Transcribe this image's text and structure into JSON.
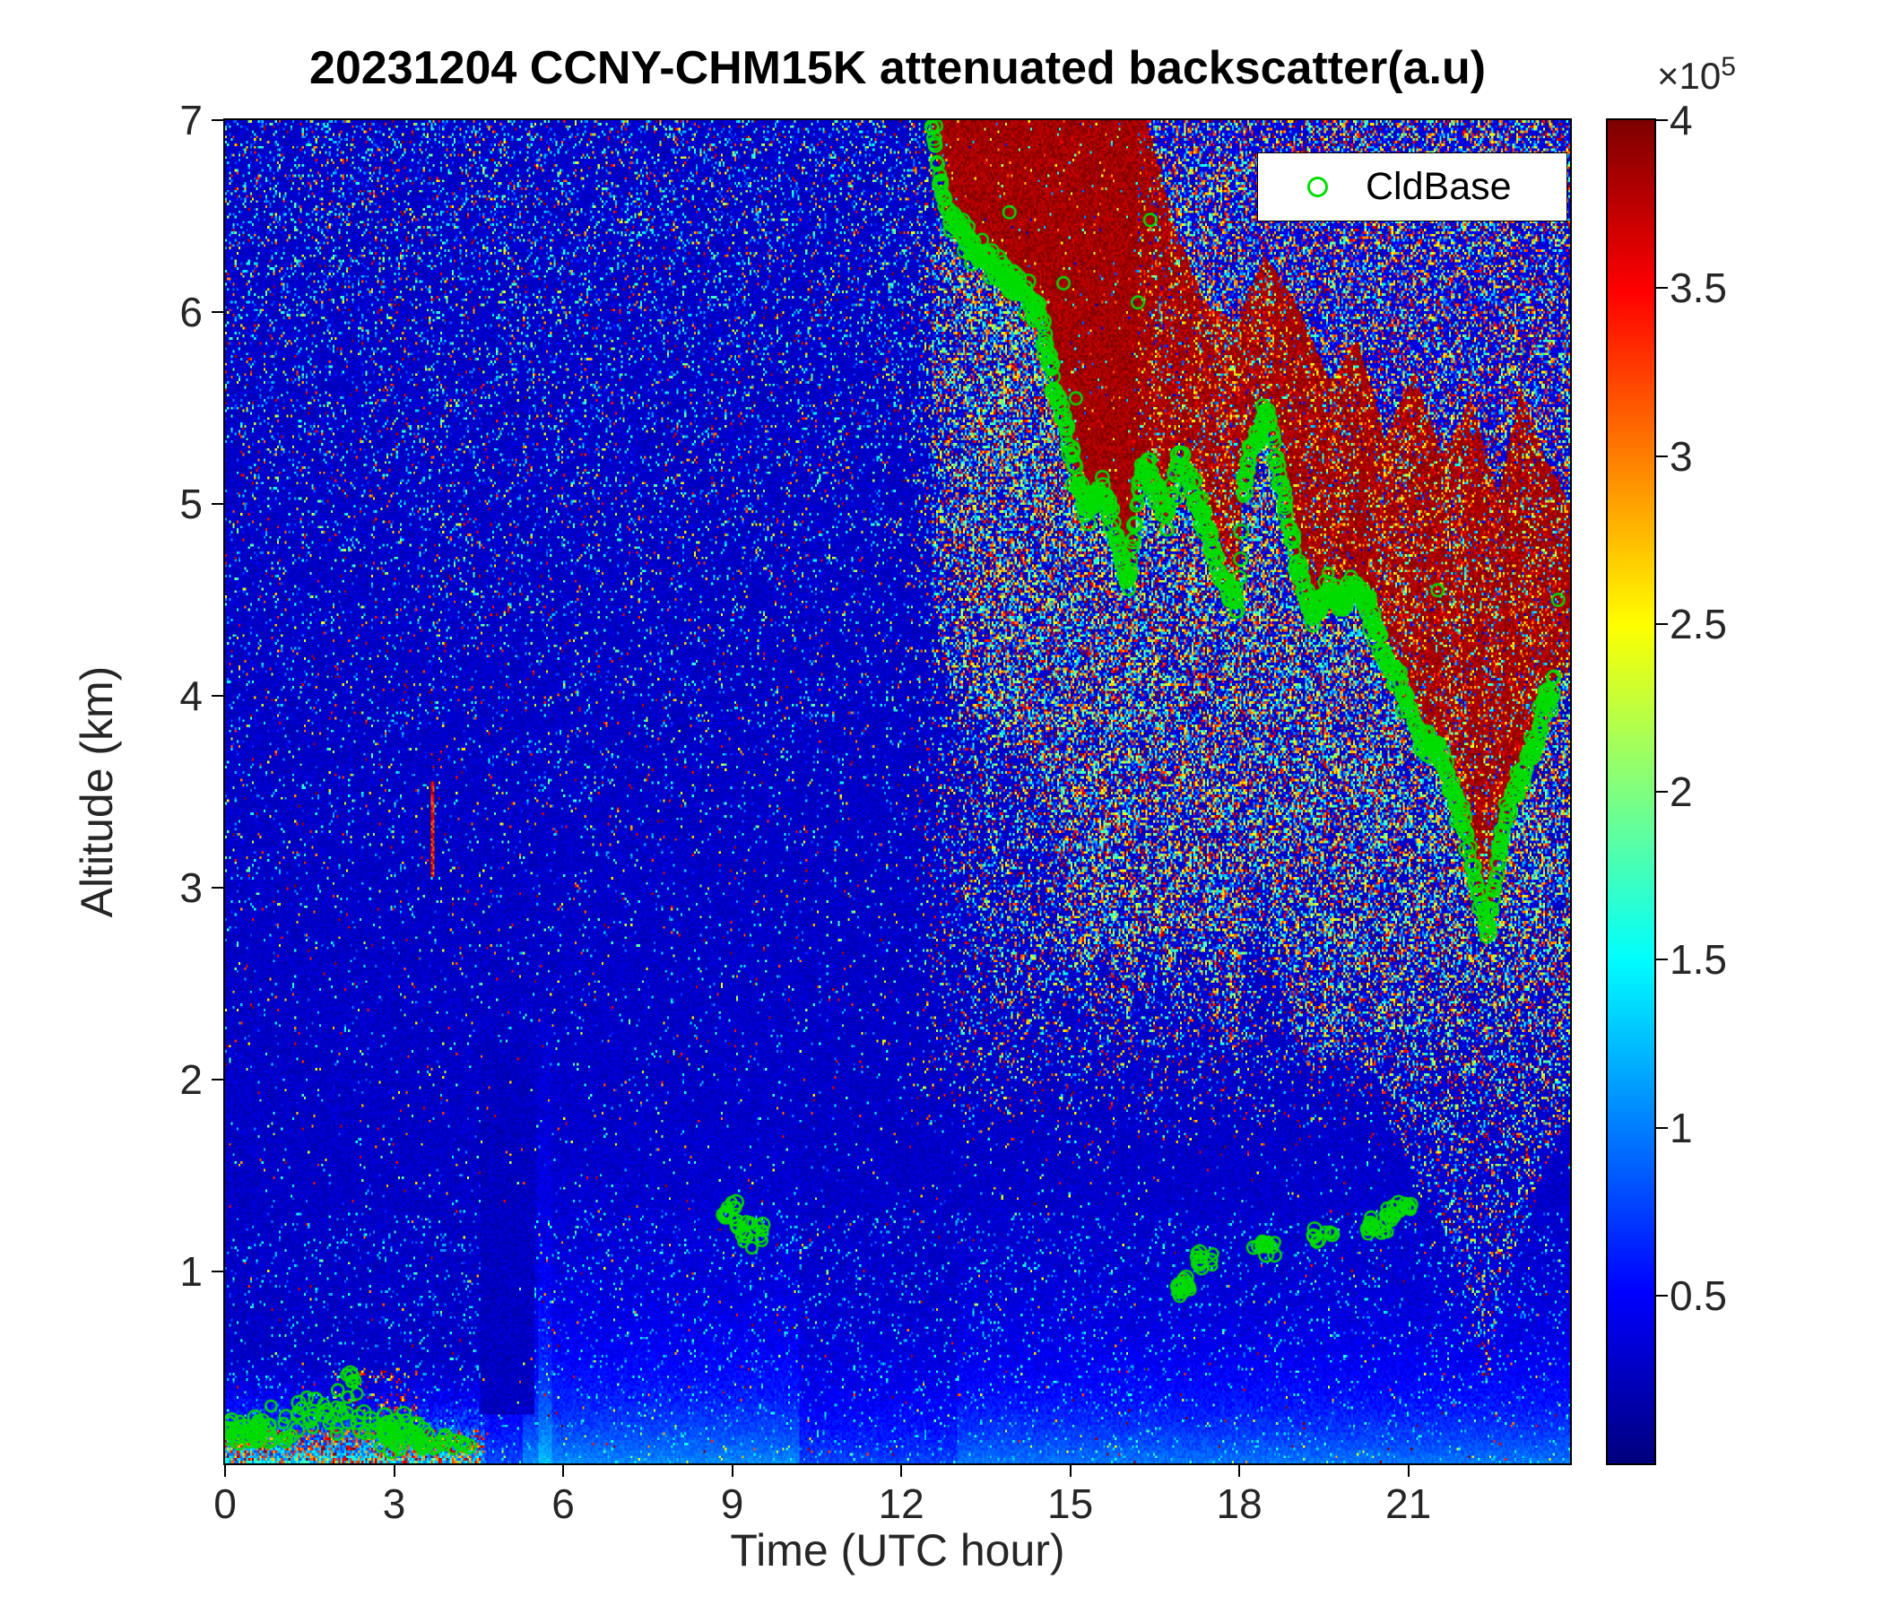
{
  "chart_data": {
    "type": "heatmap",
    "title": "20231204 CCNY-CHM15K attenuated backscatter(a.u)",
    "xlabel": "Time (UTC hour)",
    "ylabel": "Altitude (km)",
    "xlim": [
      0,
      23.87
    ],
    "ylim": [
      0,
      7
    ],
    "xticks": [
      0,
      3,
      6,
      9,
      12,
      15,
      18,
      21
    ],
    "xtick_labels": [
      "0",
      "3",
      "6",
      "9",
      "12",
      "15",
      "18",
      "21"
    ],
    "yticks": [
      1,
      2,
      3,
      4,
      5,
      6,
      7
    ],
    "ytick_labels": [
      "1",
      "2",
      "3",
      "4",
      "5",
      "6",
      "7"
    ],
    "grid": false,
    "colormap": "jet",
    "colorbar": {
      "vmin": 0,
      "vmax": 400000,
      "tick_max": 4,
      "ticks": [
        0.5,
        1,
        1.5,
        2,
        2.5,
        3,
        3.5,
        4
      ],
      "tick_labels": [
        "0.5",
        "1",
        "1.5",
        "2",
        "2.5",
        "3",
        "3.5",
        "4"
      ],
      "scale_base": "×10",
      "scale_exp": "5",
      "position": "right"
    },
    "legend": {
      "label": "CldBase",
      "marker": "circle-outline",
      "marker_color": "#00dd00",
      "position": "top-right"
    },
    "cloud_base_line": [
      [
        12.55,
        7.0
      ],
      [
        12.6,
        6.88
      ],
      [
        12.65,
        6.78
      ],
      [
        12.72,
        6.65
      ],
      [
        12.8,
        6.55
      ],
      [
        12.9,
        6.48
      ],
      [
        13.0,
        6.44
      ],
      [
        13.15,
        6.38
      ],
      [
        13.3,
        6.33
      ],
      [
        13.5,
        6.28
      ],
      [
        13.7,
        6.22
      ],
      [
        13.9,
        6.16
      ],
      [
        14.1,
        6.12
      ],
      [
        14.3,
        6.07
      ],
      [
        14.45,
        5.98
      ],
      [
        14.6,
        5.8
      ],
      [
        14.72,
        5.62
      ],
      [
        14.85,
        5.48
      ],
      [
        14.95,
        5.35
      ],
      [
        15.05,
        5.22
      ],
      [
        15.15,
        5.08
      ],
      [
        15.25,
        5.0
      ],
      [
        15.35,
        4.97
      ],
      [
        15.45,
        5.05
      ],
      [
        15.55,
        5.08
      ],
      [
        15.65,
        5.02
      ],
      [
        15.75,
        4.92
      ],
      [
        15.85,
        4.8
      ],
      [
        15.95,
        4.65
      ],
      [
        16.05,
        4.6
      ],
      [
        16.12,
        4.82
      ],
      [
        16.2,
        5.05
      ],
      [
        16.3,
        5.2
      ],
      [
        16.4,
        5.18
      ],
      [
        16.5,
        5.1
      ],
      [
        16.6,
        5.0
      ],
      [
        16.72,
        4.9
      ],
      [
        16.82,
        5.05
      ],
      [
        16.92,
        5.25
      ],
      [
        17.02,
        5.22
      ],
      [
        17.12,
        5.12
      ],
      [
        17.25,
        5.02
      ],
      [
        17.4,
        4.9
      ],
      [
        17.55,
        4.76
      ],
      [
        17.7,
        4.63
      ],
      [
        17.85,
        4.53
      ],
      [
        17.97,
        4.47
      ],
      [
        18.05,
        5.02
      ],
      [
        18.15,
        5.18
      ],
      [
        18.28,
        5.32
      ],
      [
        18.42,
        5.46
      ],
      [
        18.52,
        5.44
      ],
      [
        18.62,
        5.3
      ],
      [
        18.75,
        5.08
      ],
      [
        18.87,
        4.9
      ],
      [
        18.98,
        4.75
      ],
      [
        19.1,
        4.6
      ],
      [
        19.2,
        4.48
      ],
      [
        19.3,
        4.4
      ],
      [
        19.42,
        4.46
      ],
      [
        19.55,
        4.56
      ],
      [
        19.7,
        4.54
      ],
      [
        19.85,
        4.48
      ],
      [
        19.95,
        4.53
      ],
      [
        20.08,
        4.58
      ],
      [
        20.2,
        4.5
      ],
      [
        20.35,
        4.42
      ],
      [
        20.5,
        4.3
      ],
      [
        20.65,
        4.15
      ],
      [
        20.8,
        4.1
      ],
      [
        20.95,
        4.0
      ],
      [
        21.1,
        3.88
      ],
      [
        21.25,
        3.76
      ],
      [
        21.4,
        3.72
      ],
      [
        21.52,
        3.76
      ],
      [
        21.65,
        3.6
      ],
      [
        21.8,
        3.48
      ],
      [
        21.95,
        3.36
      ],
      [
        22.1,
        3.18
      ],
      [
        22.2,
        3.02
      ],
      [
        22.3,
        2.88
      ],
      [
        22.4,
        2.78
      ],
      [
        22.5,
        2.95
      ],
      [
        22.62,
        3.2
      ],
      [
        22.75,
        3.38
      ],
      [
        22.9,
        3.5
      ],
      [
        23.05,
        3.6
      ],
      [
        23.2,
        3.72
      ],
      [
        23.35,
        3.88
      ],
      [
        23.5,
        4.0
      ],
      [
        23.58,
        4.06
      ],
      [
        23.87,
        4.2
      ]
    ],
    "cloud_top_line": [
      [
        12.45,
        7.0
      ],
      [
        16.35,
        7.0
      ],
      [
        16.9,
        6.4
      ],
      [
        17.4,
        6.05
      ],
      [
        17.95,
        5.95
      ],
      [
        18.45,
        6.3
      ],
      [
        19.0,
        6.05
      ],
      [
        19.6,
        5.65
      ],
      [
        20.1,
        5.85
      ],
      [
        20.6,
        5.35
      ],
      [
        21.1,
        5.7
      ],
      [
        21.6,
        5.25
      ],
      [
        22.1,
        5.55
      ],
      [
        22.6,
        5.05
      ],
      [
        23.0,
        5.6
      ],
      [
        23.4,
        5.25
      ],
      [
        23.87,
        5.0
      ]
    ],
    "cloud_base_clusters": [
      {
        "h0": 0.0,
        "h1": 0.6,
        "z": 0.15,
        "spread": 0.09,
        "n": 30
      },
      {
        "h0": 0.5,
        "h1": 1.3,
        "z": 0.2,
        "spread": 0.1,
        "n": 22
      },
      {
        "h0": 1.3,
        "h1": 2.5,
        "z": 0.26,
        "spread": 0.13,
        "n": 30
      },
      {
        "h0": 2.0,
        "h1": 2.35,
        "z": 0.42,
        "spread": 0.06,
        "n": 7
      },
      {
        "h0": 2.55,
        "h1": 3.65,
        "z": 0.16,
        "spread": 0.11,
        "n": 55
      },
      {
        "h0": 3.65,
        "h1": 4.35,
        "z": 0.1,
        "spread": 0.05,
        "n": 12
      },
      {
        "h0": 8.82,
        "h1": 9.1,
        "z": 1.33,
        "spread": 0.09,
        "n": 12
      },
      {
        "h0": 9.05,
        "h1": 9.55,
        "z": 1.22,
        "spread": 0.11,
        "n": 18
      },
      {
        "h0": 16.88,
        "h1": 17.15,
        "z": 0.93,
        "spread": 0.08,
        "n": 16
      },
      {
        "h0": 17.2,
        "h1": 17.55,
        "z": 1.07,
        "spread": 0.07,
        "n": 12
      },
      {
        "h0": 18.25,
        "h1": 18.65,
        "z": 1.12,
        "spread": 0.07,
        "n": 14
      },
      {
        "h0": 19.3,
        "h1": 19.65,
        "z": 1.2,
        "spread": 0.06,
        "n": 10
      },
      {
        "h0": 20.25,
        "h1": 20.7,
        "z": 1.24,
        "spread": 0.07,
        "n": 16
      },
      {
        "h0": 20.6,
        "h1": 21.05,
        "z": 1.32,
        "spread": 0.06,
        "n": 18
      }
    ],
    "cloud_base_outliers": [
      [
        13.92,
        6.52
      ],
      [
        14.88,
        6.15
      ],
      [
        16.2,
        6.05
      ],
      [
        16.42,
        6.48
      ],
      [
        12.62,
        6.97
      ],
      [
        15.1,
        5.55
      ],
      [
        21.52,
        4.55
      ],
      [
        23.66,
        4.5
      ]
    ],
    "heatmap_model": {
      "seed": 20231204,
      "nx": 700,
      "ny": 520,
      "base_value": 0.045,
      "base_noise": 0.05,
      "clear_speckle_base": 0.015,
      "clear_speckle_alt_gain": 0.2,
      "right_speckle_start_hour": 12.1,
      "right_speckle_gain": 0.3,
      "virga_depth_km": 2.4,
      "virga_speckle": 0.22,
      "above_cloud_speckle": 0.5,
      "cloud_value": 0.93,
      "cloud_solid_left": 0.97,
      "cloud_streak_min": 0.45,
      "streak_solid_hour": 16.2,
      "bl_left_end_hour": 4.6,
      "dark_columns": {
        "h0": 4.55,
        "h1": 5.5,
        "zmax": 2.2
      },
      "red_streak": {
        "hour": 3.68,
        "half_width": 0.035,
        "z0": 3.05,
        "z1": 3.55
      },
      "line_step": 0.021,
      "line_h_end": 23.58
    }
  }
}
